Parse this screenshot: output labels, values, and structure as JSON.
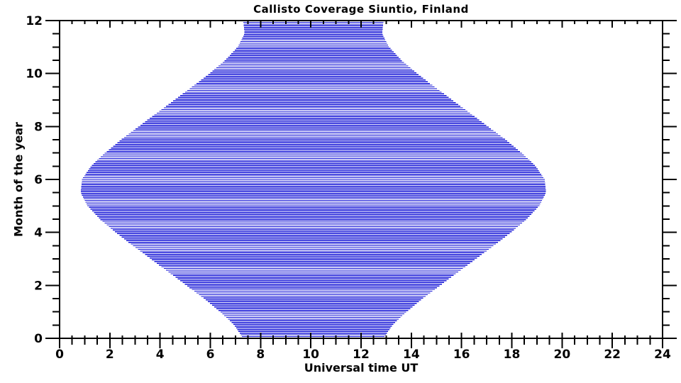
{
  "title": "Callisto Coverage Siuntio, Finland",
  "axes": {
    "x": {
      "label": "Universal time UT",
      "min": 0,
      "max": 24,
      "major_tick_step": 2,
      "minor_tick_step": 0.5,
      "tick_labels": [
        "0",
        "2",
        "4",
        "6",
        "8",
        "10",
        "12",
        "14",
        "16",
        "18",
        "20",
        "22",
        "24"
      ]
    },
    "y": {
      "label": "Month of the year",
      "min": 0,
      "max": 12,
      "major_tick_step": 2,
      "minor_tick_step": 0.5,
      "tick_labels": [
        "0",
        "2",
        "4",
        "6",
        "8",
        "10",
        "12"
      ]
    }
  },
  "chart_data": {
    "type": "area",
    "title": "Callisto Coverage Siuntio, Finland",
    "xlabel": "Universal time UT",
    "ylabel": "Month of the year",
    "xlim": [
      0,
      24
    ],
    "ylim": [
      0,
      12
    ],
    "grid": false,
    "legend": null,
    "description": "Daylight observing coverage band: one horizontal blue line per observing day, spanning local sunrise to sunset in UT, month 0 (Jan) at bottom to month 12 (Dec) at top. Band is narrowest in winter (about 7.3-12.9 UT) and widest at the June solstice (about 0.8-19.4 UT).",
    "line_color": "#1212D6",
    "axis_color": "#000000",
    "background_color": "#ffffff",
    "n_lines": 183,
    "envelope": {
      "months": [
        0,
        0.5,
        1,
        1.5,
        2,
        2.5,
        3,
        3.5,
        4,
        4.5,
        5,
        5.5,
        6,
        6.5,
        7,
        7.5,
        8,
        8.5,
        9,
        9.5,
        10,
        10.5,
        11,
        11.5,
        12
      ],
      "sunrise_ut": [
        7.31,
        6.95,
        6.4,
        5.75,
        5.05,
        4.34,
        3.63,
        2.92,
        2.23,
        1.61,
        1.11,
        0.84,
        0.89,
        1.25,
        1.8,
        2.45,
        3.15,
        3.86,
        4.57,
        5.28,
        5.97,
        6.59,
        7.09,
        7.36,
        7.31
      ],
      "sunset_ut": [
        12.89,
        13.25,
        13.8,
        14.45,
        15.15,
        15.86,
        16.57,
        17.28,
        17.97,
        18.59,
        19.09,
        19.36,
        19.31,
        18.95,
        18.4,
        17.75,
        17.05,
        16.34,
        15.63,
        14.92,
        14.23,
        13.61,
        13.11,
        12.84,
        12.89
      ]
    }
  }
}
